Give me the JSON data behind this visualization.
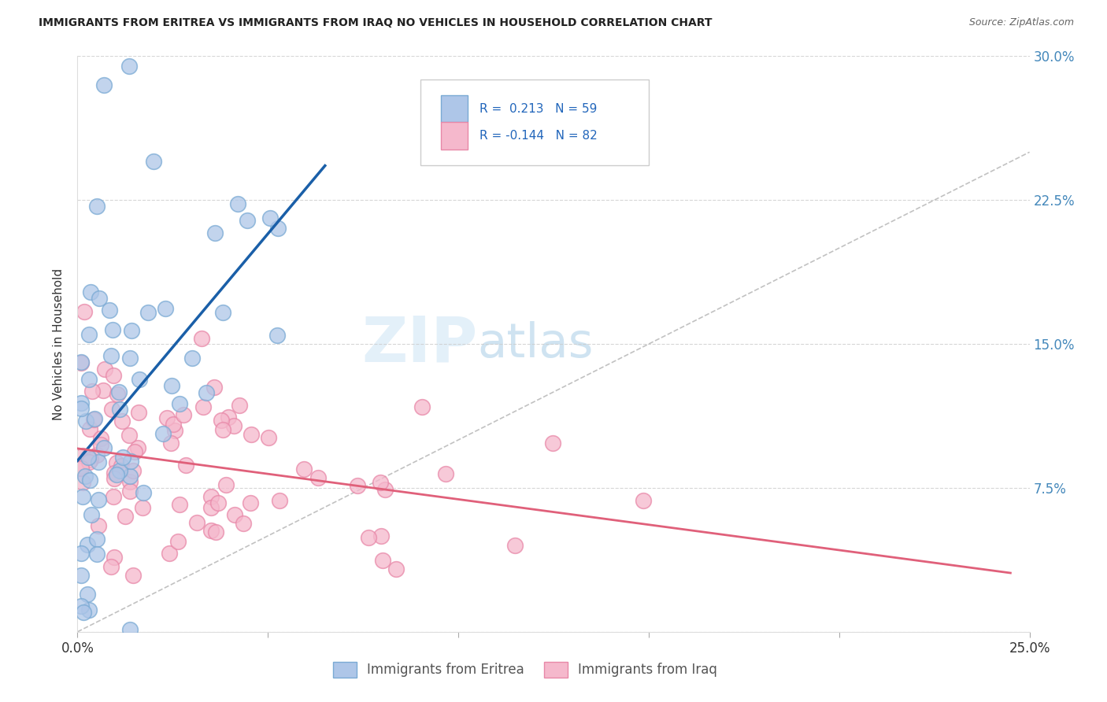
{
  "title": "IMMIGRANTS FROM ERITREA VS IMMIGRANTS FROM IRAQ NO VEHICLES IN HOUSEHOLD CORRELATION CHART",
  "source": "Source: ZipAtlas.com",
  "ylabel": "No Vehicles in Household",
  "xlim": [
    0.0,
    0.25
  ],
  "ylim": [
    0.0,
    0.3
  ],
  "xtick_pos": [
    0.0,
    0.05,
    0.1,
    0.15,
    0.2,
    0.25
  ],
  "ytick_pos": [
    0.0,
    0.075,
    0.15,
    0.225,
    0.3
  ],
  "xticklabels": [
    "0.0%",
    "",
    "",
    "",
    "",
    "25.0%"
  ],
  "yticklabels_right": [
    "",
    "7.5%",
    "15.0%",
    "22.5%",
    "30.0%"
  ],
  "eritrea_color": "#aec6e8",
  "eritrea_edge": "#7aaad4",
  "iraq_color": "#f5b8cc",
  "iraq_edge": "#e888a8",
  "eritrea_R": 0.213,
  "eritrea_N": 59,
  "iraq_R": -0.144,
  "iraq_N": 82,
  "trend_blue": "#1a5fa8",
  "trend_pink": "#e0607a",
  "diag_color": "#bbbbbb",
  "legend_label_eritrea": "Immigrants from Eritrea",
  "legend_label_iraq": "Immigrants from Iraq",
  "background_color": "#ffffff",
  "watermark_zip": "ZIP",
  "watermark_atlas": "atlas",
  "grid_color": "#cccccc",
  "tick_color": "#4488bb",
  "title_color": "#222222",
  "source_color": "#666666",
  "ylabel_color": "#333333",
  "bottom_label_color": "#555555",
  "legend_text_color": "#222222",
  "legend_R_color": "#2266bb"
}
